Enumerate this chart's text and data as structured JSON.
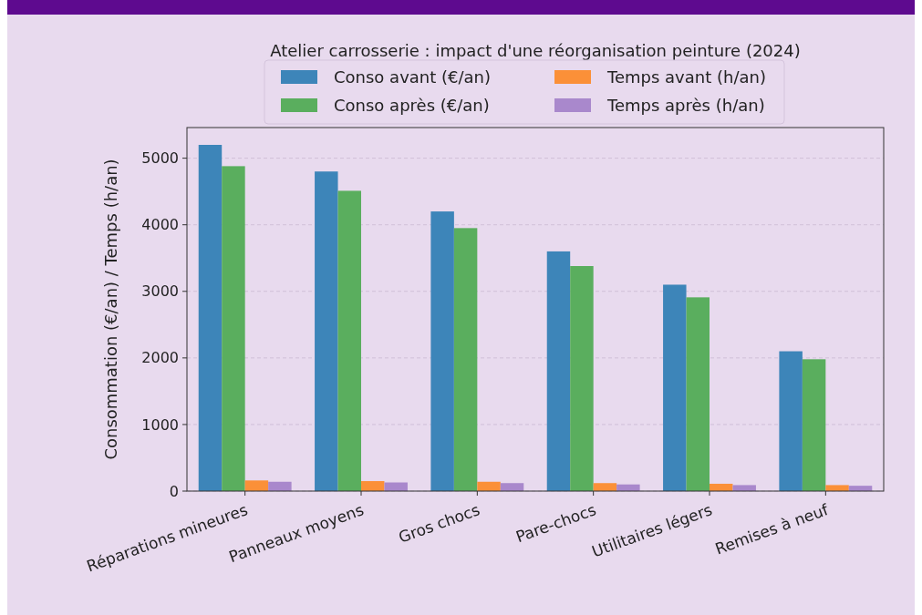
{
  "chart_data": {
    "type": "bar",
    "title": "Atelier carrosserie : impact d'une réorganisation peinture (2024)",
    "ylabel": "Consommation (€/an) / Temps (h/an)",
    "categories": [
      "Réparations mineures",
      "Panneaux moyens",
      "Gros chocs",
      "Pare-chocs",
      "Utilitaires légers",
      "Remises à neuf"
    ],
    "series": [
      {
        "name": "Conso avant (€/an)",
        "color": "#3d85b9",
        "values": [
          5200,
          4800,
          4200,
          3600,
          3100,
          2100
        ]
      },
      {
        "name": "Conso après (€/an)",
        "color": "#5aae5e",
        "values": [
          4880,
          4510,
          3950,
          3380,
          2910,
          1980
        ]
      },
      {
        "name": "Temps avant (h/an)",
        "color": "#fb9038",
        "values": [
          160,
          150,
          140,
          120,
          110,
          90
        ]
      },
      {
        "name": "Temps après (h/an)",
        "color": "#a988cc",
        "values": [
          140,
          130,
          120,
          100,
          90,
          80
        ]
      }
    ],
    "ylim": [
      0,
      5460
    ],
    "yticks": [
      0,
      1000,
      2000,
      3000,
      4000,
      5000
    ],
    "grid": "y",
    "legend": "top"
  }
}
